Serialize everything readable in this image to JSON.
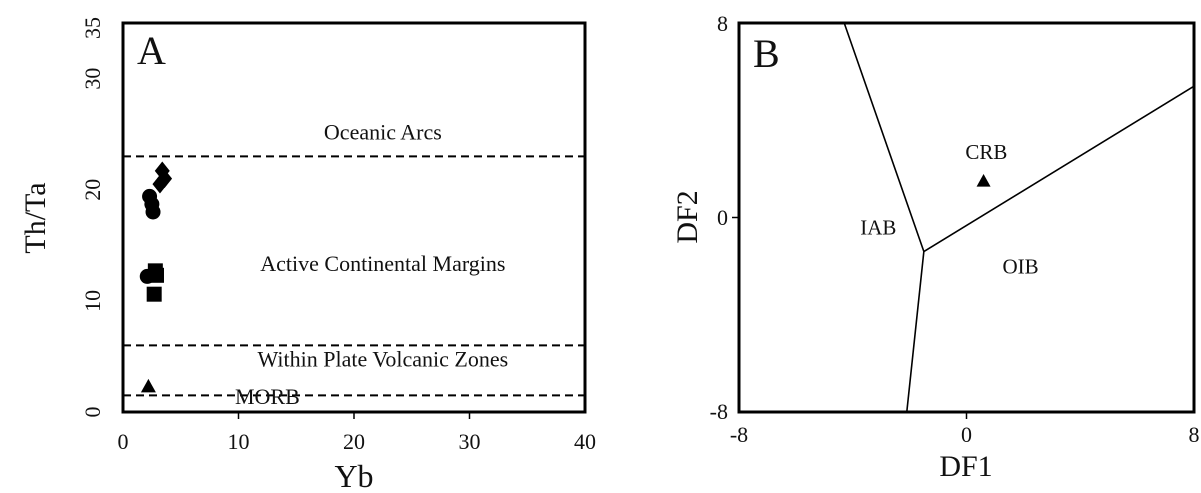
{
  "chart_data": [
    {
      "type": "scatter",
      "panel_label": "A",
      "xlabel": "Yb",
      "ylabel": "Th/Ta",
      "xlim": [
        0,
        40
      ],
      "ylim": [
        0,
        35
      ],
      "x_ticks": [
        "0",
        "10",
        "20",
        "30",
        "40"
      ],
      "y_ticks": [
        "0",
        "10",
        "20",
        "30",
        "35"
      ],
      "reference_lines": [
        {
          "y": 23,
          "style": "dashed"
        },
        {
          "y": 6,
          "style": "dashed"
        },
        {
          "y": 1.5,
          "style": "dashed"
        }
      ],
      "field_labels": [
        {
          "text": "Oceanic Arcs",
          "x": 22.5,
          "y": 24.5
        },
        {
          "text": "Active Continental Margins",
          "x": 22.5,
          "y": 12.7
        },
        {
          "text": "Within Plate Volcanic Zones",
          "x": 22.5,
          "y": 4.1
        },
        {
          "text": "MORB",
          "x": 12.5,
          "y": 0.7
        }
      ],
      "series": [
        {
          "marker": "diamond",
          "points": [
            [
              3.4,
              21.7
            ],
            [
              3.6,
              21.0
            ],
            [
              3.2,
              20.5
            ]
          ]
        },
        {
          "marker": "circle",
          "points": [
            [
              2.3,
              19.4
            ],
            [
              2.5,
              18.7
            ],
            [
              2.6,
              18.0
            ],
            [
              2.1,
              12.2
            ]
          ]
        },
        {
          "marker": "square",
          "points": [
            [
              2.8,
              12.7
            ],
            [
              2.9,
              12.3
            ],
            [
              2.7,
              10.6
            ]
          ]
        },
        {
          "marker": "triangle",
          "points": [
            [
              2.2,
              2.3
            ]
          ]
        }
      ],
      "grid": false
    },
    {
      "type": "scatter",
      "panel_label": "B",
      "xlabel": "DF1",
      "ylabel": "DF2",
      "xlim": [
        -8,
        8
      ],
      "ylim": [
        -8,
        8
      ],
      "x_ticks": [
        "-8",
        "0",
        "8"
      ],
      "y_ticks": [
        "-8",
        "0",
        "8"
      ],
      "field_boundaries": [
        [
          [
            -4.3,
            8
          ],
          [
            -1.5,
            -1.4
          ]
        ],
        [
          [
            -1.5,
            -1.4
          ],
          [
            8,
            5.4
          ]
        ],
        [
          [
            -1.5,
            -1.4
          ],
          [
            -2.1,
            -8
          ]
        ]
      ],
      "field_labels": [
        {
          "text": "CRB",
          "x": 0.7,
          "y": 2.4
        },
        {
          "text": "IAB",
          "x": -3.1,
          "y": -0.7
        },
        {
          "text": "OIB",
          "x": 1.9,
          "y": -2.3
        }
      ],
      "series": [
        {
          "marker": "triangle",
          "points": [
            [
              0.6,
              1.5
            ]
          ]
        }
      ],
      "grid": false
    }
  ]
}
